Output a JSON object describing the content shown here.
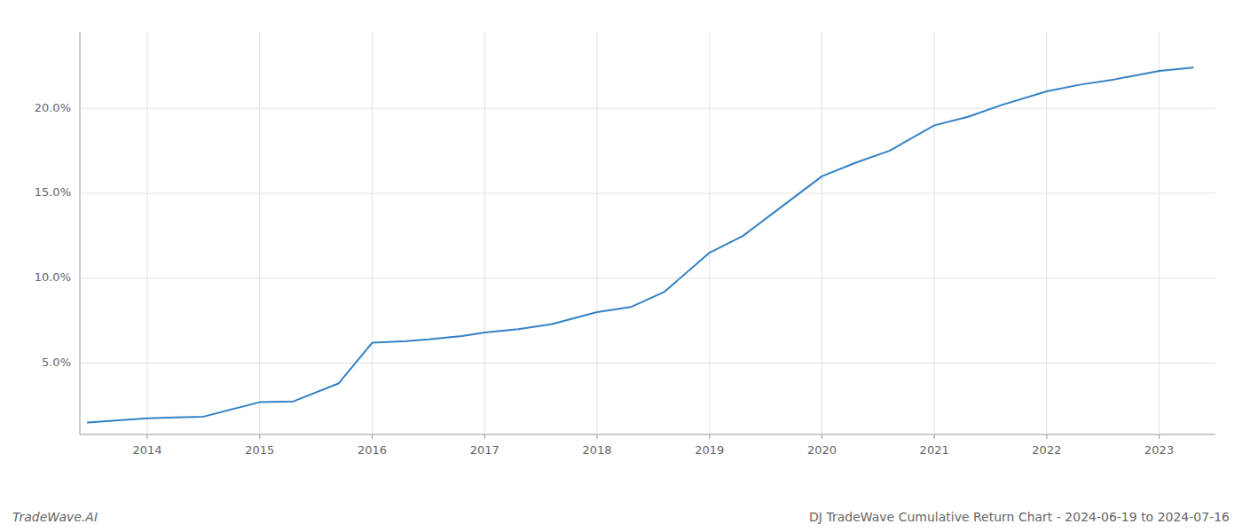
{
  "chart_data": {
    "type": "line",
    "title": "DJ TradeWave Cumulative Return Chart - 2024-06-19 to 2024-07-16",
    "annotations": [
      "TradeWave.AI"
    ],
    "x": [
      2013.47,
      2014.0,
      2014.25,
      2014.5,
      2015.0,
      2015.3,
      2015.7,
      2016.0,
      2016.3,
      2016.5,
      2016.8,
      2017.0,
      2017.3,
      2017.6,
      2018.0,
      2018.3,
      2018.6,
      2019.0,
      2019.3,
      2019.6,
      2020.0,
      2020.3,
      2020.6,
      2021.0,
      2021.3,
      2021.6,
      2022.0,
      2022.3,
      2022.6,
      2023.0,
      2023.3
    ],
    "values": [
      1.5,
      1.75,
      1.8,
      1.85,
      2.7,
      2.75,
      3.8,
      6.2,
      6.3,
      6.4,
      6.6,
      6.8,
      7.0,
      7.3,
      8.0,
      8.3,
      9.2,
      11.5,
      12.5,
      14.0,
      16.0,
      16.8,
      17.5,
      19.0,
      19.5,
      20.2,
      21.0,
      21.4,
      21.7,
      22.2,
      22.4
    ],
    "color": "#3381c4",
    "xlim": [
      2013.4,
      2023.5
    ],
    "xticks": [
      2014,
      2015,
      2016,
      2017,
      2018,
      2019,
      2020,
      2021,
      2022,
      2023
    ],
    "ylim": [
      0.8,
      24.5
    ],
    "yticks": [
      {
        "value": 5.0,
        "label": "5.0%"
      },
      {
        "value": 10.0,
        "label": "10.0%"
      },
      {
        "value": 15.0,
        "label": "15.0%"
      },
      {
        "value": 20.0,
        "label": "20.0%"
      }
    ],
    "grid": true
  }
}
